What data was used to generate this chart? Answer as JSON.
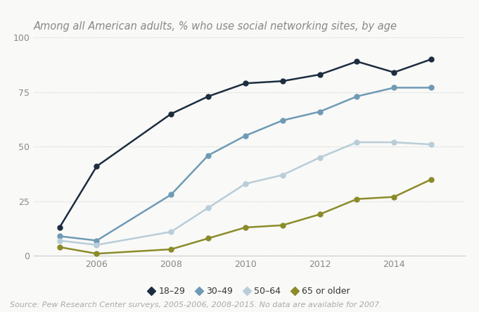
{
  "title": "Among all American adults, % who use social networking sites, by age",
  "source_text": "Source: Pew Research Center surveys, 2005-2006, 2008-2015. No data are available for 2007.",
  "years": [
    2005,
    2006,
    2008,
    2009,
    2010,
    2011,
    2012,
    2013,
    2014,
    2015
  ],
  "series": {
    "18-29": {
      "values": [
        13,
        41,
        65,
        73,
        79,
        80,
        83,
        89,
        84,
        90
      ],
      "color": "#1c2d40",
      "label": "18–29"
    },
    "30-49": {
      "values": [
        9,
        7,
        28,
        46,
        55,
        62,
        66,
        73,
        77,
        77
      ],
      "color": "#6e9ab5",
      "label": "30–49"
    },
    "50-64": {
      "values": [
        7,
        5,
        11,
        22,
        33,
        37,
        45,
        52,
        52,
        51
      ],
      "color": "#b8cdd9",
      "label": "50–64"
    },
    "65+": {
      "values": [
        4,
        1,
        3,
        8,
        13,
        14,
        19,
        26,
        27,
        35
      ],
      "color": "#8b8b2a",
      "label": "65 or older"
    }
  },
  "ylim": [
    0,
    100
  ],
  "yticks": [
    0,
    25,
    50,
    75,
    100
  ],
  "xtick_labels": [
    "2006",
    "2008",
    "2010",
    "2012",
    "2014"
  ],
  "xtick_positions": [
    2006,
    2008,
    2010,
    2012,
    2014
  ],
  "background_color": "#f9f9f7",
  "plot_bg_color": "#f9f9f7",
  "grid_color": "#cccccc",
  "title_color": "#888888",
  "source_color": "#aaaaaa",
  "title_fontsize": 10.5,
  "source_fontsize": 8,
  "legend_fontsize": 9,
  "tick_fontsize": 9,
  "marker": "o",
  "markersize": 5,
  "linewidth": 1.8
}
